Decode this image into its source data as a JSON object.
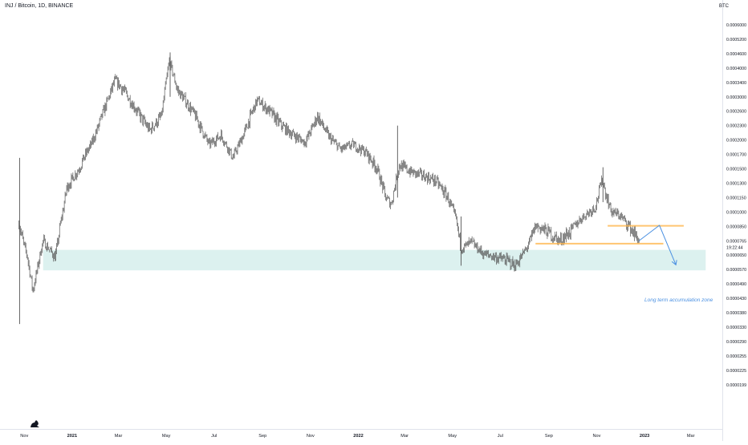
{
  "header": {
    "symbol": "INJ / Bitcoin, 1D, BINANCE",
    "unit": "BTC"
  },
  "chart_data": {
    "type": "candlestick",
    "y_scale": "log",
    "xlabel": "",
    "ylabel": "BTC",
    "x_tick_labels": [
      "Nov",
      "2021",
      "Mar",
      "May",
      "Jul",
      "Sep",
      "Nov",
      "2022",
      "Mar",
      "May",
      "Jul",
      "Sep",
      "Nov",
      "2023",
      "Mar"
    ],
    "y_tick_labels": [
      "0.0006000",
      "0.0005200",
      "0.0004600",
      "0.0004000",
      "0.0003400",
      "0.0003000",
      "0.0002600",
      "0.0002300",
      "0.0002000",
      "0.0001700",
      "0.0001500",
      "0.0001300",
      "0.0001150",
      "0.0001000",
      "0.0000850",
      "0.0000765",
      "0.0000650",
      "0.0000570",
      "0.0000490",
      "0.0000430",
      "0.0000380",
      "0.0000330",
      "0.0000290",
      "0.0000255",
      "0.0000225",
      "0.0000199"
    ],
    "last_price_time": "19:22:44",
    "annotations": {
      "accumulation_zone_label": "Long term accumulation zone",
      "zone_color": "#b2dfdb",
      "level_color": "#ffb74d",
      "arrow_color": "#4a90e2"
    },
    "price_path": [
      [
        "Oct 25 2020",
        8.8e-05
      ],
      [
        "Nov 05 2020",
        6.4e-05
      ],
      [
        "Nov 12 2020",
        4.6e-05
      ],
      [
        "Nov 25 2020",
        7.6e-05
      ],
      [
        "Dec 10 2020",
        6.4e-05
      ],
      [
        "Dec 25 2020",
        0.000125
      ],
      [
        "Jan 10 2021",
        0.00015
      ],
      [
        "Jan 25 2021",
        0.00019
      ],
      [
        "Feb 10 2021",
        0.00026
      ],
      [
        "Feb 25 2021",
        0.00035
      ],
      [
        "Mar 10 2021",
        0.00031
      ],
      [
        "Mar 25 2021",
        0.00026
      ],
      [
        "Apr 10 2021",
        0.00022
      ],
      [
        "Apr 25 2021",
        0.00025
      ],
      [
        "May 05 2021",
        0.00043
      ],
      [
        "May 15 2021",
        0.00032
      ],
      [
        "May 25 2021",
        0.00029
      ],
      [
        "Jun 10 2021",
        0.00024
      ],
      [
        "Jun 25 2021",
        0.00019
      ],
      [
        "Jul 10 2021",
        0.00021
      ],
      [
        "Jul 25 2021",
        0.000165
      ],
      [
        "Aug 10 2021",
        0.00022
      ],
      [
        "Aug 25 2021",
        0.00029
      ],
      [
        "Sep 10 2021",
        0.00026
      ],
      [
        "Sep 25 2021",
        0.00023
      ],
      [
        "Oct 10 2021",
        0.00021
      ],
      [
        "Oct 25 2021",
        0.000195
      ],
      [
        "Nov 10 2021",
        0.00025
      ],
      [
        "Nov 25 2021",
        0.000205
      ],
      [
        "Dec 10 2021",
        0.00018
      ],
      [
        "Dec 25 2021",
        0.00019
      ],
      [
        "Jan 10 2022",
        0.000175
      ],
      [
        "Jan 25 2022",
        0.00015
      ],
      [
        "Feb 05 2022",
        0.000115
      ],
      [
        "Feb 12 2022",
        0.000108
      ],
      [
        "Feb 22 2022",
        0.000155
      ],
      [
        "Mar 10 2022",
        0.000145
      ],
      [
        "Mar 25 2022",
        0.00014
      ],
      [
        "Apr 10 2022",
        0.000133
      ],
      [
        "Apr 25 2022",
        0.000115
      ],
      [
        "May 05 2022",
        9.5e-05
      ],
      [
        "May 12 2022",
        7e-05
      ],
      [
        "May 25 2022",
        7.5e-05
      ],
      [
        "Jun 10 2022",
        6.6e-05
      ],
      [
        "Jun 25 2022",
        6.4e-05
      ],
      [
        "Jul 10 2022",
        6.2e-05
      ],
      [
        "Jul 20 2022",
        5.9e-05
      ],
      [
        "Jul 28 2022",
        6.4e-05
      ],
      [
        "Aug 05 2022",
        7.2e-05
      ],
      [
        "Aug 15 2022",
        8.6e-05
      ],
      [
        "Aug 30 2022",
        8.2e-05
      ],
      [
        "Sep 15 2022",
        7.6e-05
      ],
      [
        "Sep 30 2022",
        8.3e-05
      ],
      [
        "Oct 15 2022",
        9.5e-05
      ],
      [
        "Oct 30 2022",
        0.000105
      ],
      [
        "Nov 08 2022",
        0.000135
      ],
      [
        "Nov 12 2022",
        0.00012
      ],
      [
        "Nov 20 2022",
        0.0001
      ],
      [
        "Dec 01 2022",
        9.6e-05
      ],
      [
        "Dec 10 2022",
        8.8e-05
      ],
      [
        "Dec 18 2022",
        8.1e-05
      ],
      [
        "Dec 25 2022",
        7.65e-05
      ]
    ],
    "spikes": [
      {
        "date": "Oct 26 2020",
        "high": 0.000165,
        "low": 3.4e-05
      },
      {
        "date": "May 06 2021",
        "high": 0.000465,
        "low": 0.0003
      },
      {
        "date": "Feb 20 2022",
        "high": 0.00023,
        "low": 0.000115
      },
      {
        "date": "May 12 2022",
        "high": 9.5e-05,
        "low": 5.9e-05
      },
      {
        "date": "Nov 09 2022",
        "high": 0.000152,
        "low": 0.00011
      }
    ],
    "accumulation_zone": {
      "start": "Nov 25 2020",
      "end": "Mar 20 2023",
      "low": 5.65e-05,
      "high": 6.9e-05
    },
    "levels": [
      {
        "start": "Nov 15 2022",
        "end": "Feb 20 2023",
        "price": 8.55e-05
      },
      {
        "start": "Aug 15 2022",
        "end": "Jan 25 2023",
        "price": 7.4e-05
      }
    ],
    "projection": [
      [
        "Dec 25 2022",
        7.65e-05
      ],
      [
        "Jan 20 2023",
        8.6e-05
      ],
      [
        "Feb 10 2023",
        5.95e-05
      ]
    ]
  }
}
